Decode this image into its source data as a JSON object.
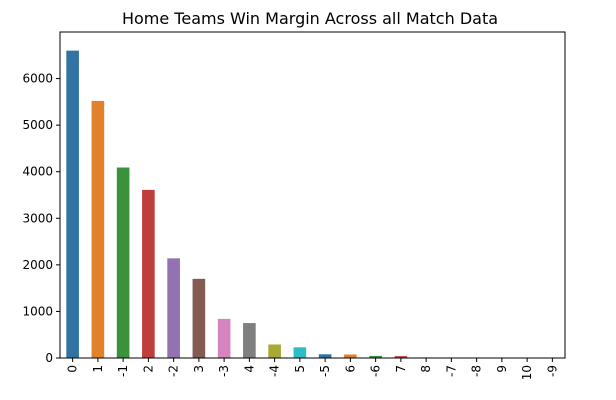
{
  "chart_data": {
    "type": "bar",
    "title": "Home Teams Win Margin Across all Match Data",
    "xlabel": "",
    "ylabel": "",
    "categories": [
      "0",
      "1",
      "-1",
      "2",
      "-2",
      "3",
      "-3",
      "4",
      "-4",
      "5",
      "-5",
      "6",
      "-6",
      "7",
      "8",
      "-7",
      "-8",
      "9",
      "10",
      "-9"
    ],
    "values": [
      6600,
      5520,
      4090,
      3610,
      2140,
      1700,
      840,
      750,
      290,
      230,
      80,
      75,
      45,
      40,
      12,
      10,
      8,
      5,
      3,
      2
    ],
    "colors": [
      "#3274a1",
      "#e1812c",
      "#3a923a",
      "#c03d3e",
      "#9372b2",
      "#845b53",
      "#d684bd",
      "#7f7f7f",
      "#a9aa35",
      "#2ebcc6"
    ],
    "ylim": [
      0,
      7000
    ],
    "yticks": [
      0,
      1000,
      2000,
      3000,
      4000,
      5000,
      6000
    ],
    "grid": false,
    "legend": "none"
  }
}
